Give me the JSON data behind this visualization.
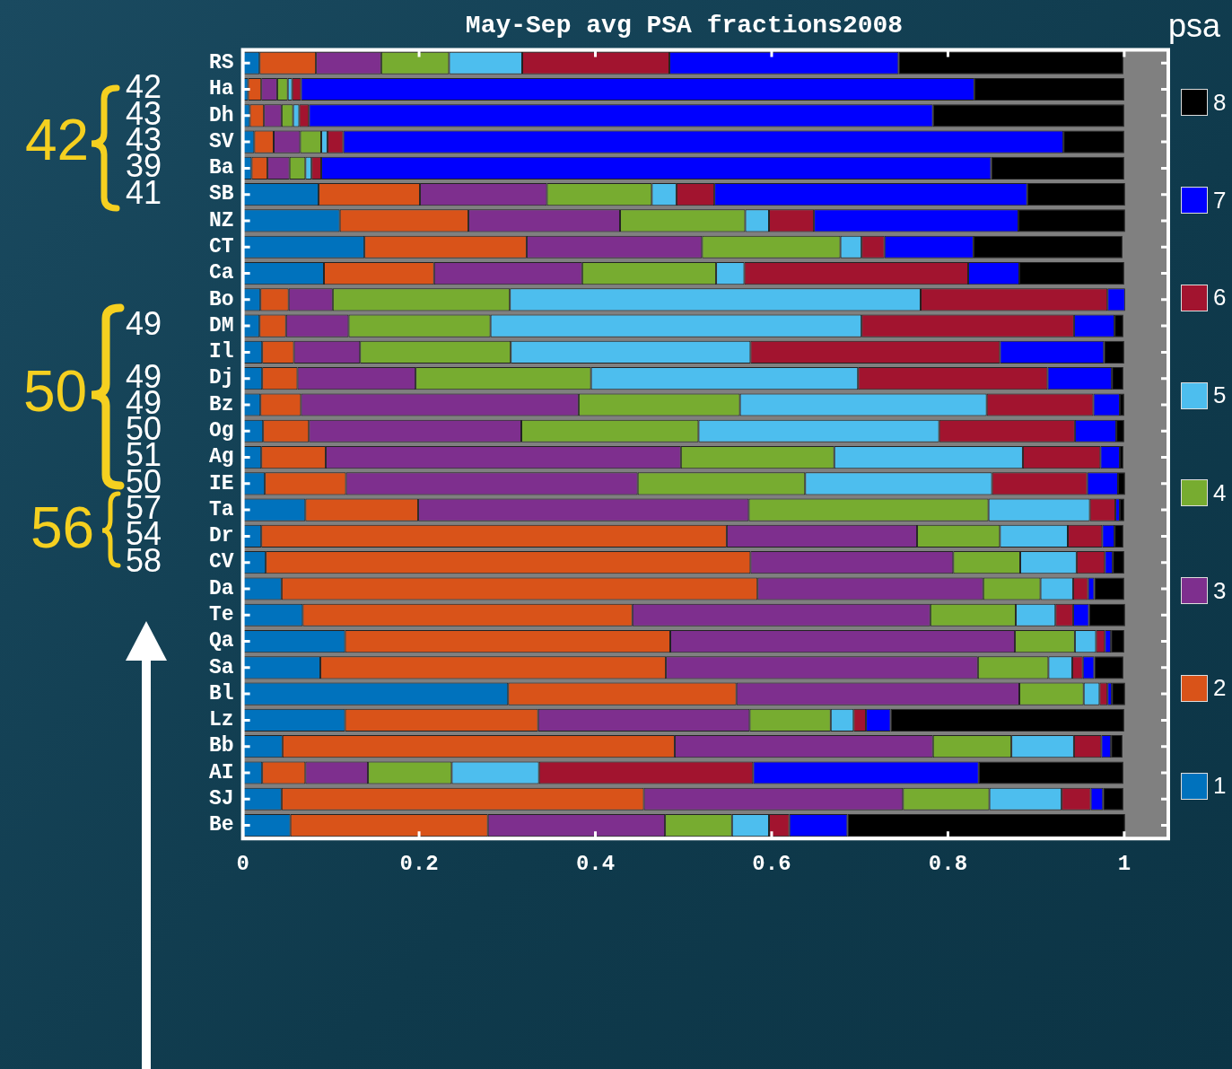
{
  "chart_data": {
    "type": "bar",
    "orientation": "horizontal",
    "stacked": true,
    "title": "May-Sep avg PSA fractions2008",
    "legend_title": "psa",
    "legend": "right",
    "grid": false,
    "categories": [
      "RS",
      "Ha",
      "Dh",
      "SV",
      "Ba",
      "SB",
      "NZ",
      "CT",
      "Ca",
      "Bo",
      "DM",
      "Il",
      "Dj",
      "Bz",
      "Og",
      "Ag",
      "IE",
      "Ta",
      "Dr",
      "CV",
      "Da",
      "Te",
      "Qa",
      "Sa",
      "Bl",
      "Lz",
      "Bb",
      "AI",
      "SJ",
      "Be"
    ],
    "xlim": [
      0,
      1.05
    ],
    "xticks": [
      0,
      0.2,
      0.4,
      0.6,
      0.8,
      1
    ],
    "series": [
      {
        "name": "1",
        "color": "#0072bd",
        "values": [
          0.019,
          0.006,
          0.008,
          0.013,
          0.01,
          0.086,
          0.11,
          0.138,
          0.092,
          0.02,
          0.019,
          0.022,
          0.022,
          0.02,
          0.023,
          0.021,
          0.025,
          0.071,
          0.021,
          0.026,
          0.044,
          0.068,
          0.116,
          0.088,
          0.301,
          0.116,
          0.045,
          0.022,
          0.044,
          0.054
        ]
      },
      {
        "name": "2",
        "color": "#d95319",
        "values": [
          0.064,
          0.015,
          0.016,
          0.022,
          0.018,
          0.115,
          0.146,
          0.184,
          0.125,
          0.032,
          0.03,
          0.036,
          0.04,
          0.046,
          0.052,
          0.073,
          0.092,
          0.128,
          0.528,
          0.55,
          0.54,
          0.374,
          0.369,
          0.392,
          0.259,
          0.219,
          0.445,
          0.049,
          0.411,
          0.224
        ]
      },
      {
        "name": "3",
        "color": "#7e2f8e",
        "values": [
          0.074,
          0.018,
          0.02,
          0.03,
          0.025,
          0.144,
          0.172,
          0.199,
          0.168,
          0.05,
          0.071,
          0.075,
          0.134,
          0.315,
          0.241,
          0.403,
          0.331,
          0.375,
          0.216,
          0.23,
          0.256,
          0.338,
          0.391,
          0.354,
          0.321,
          0.24,
          0.293,
          0.071,
          0.294,
          0.201
        ]
      },
      {
        "name": "4",
        "color": "#77ac30",
        "values": [
          0.077,
          0.012,
          0.013,
          0.024,
          0.018,
          0.119,
          0.142,
          0.157,
          0.152,
          0.201,
          0.161,
          0.171,
          0.199,
          0.183,
          0.201,
          0.174,
          0.19,
          0.272,
          0.094,
          0.076,
          0.065,
          0.097,
          0.068,
          0.08,
          0.073,
          0.092,
          0.089,
          0.095,
          0.098,
          0.076
        ]
      },
      {
        "name": "5",
        "color": "#4dbeee",
        "values": [
          0.083,
          0.005,
          0.007,
          0.007,
          0.007,
          0.028,
          0.027,
          0.024,
          0.032,
          0.466,
          0.421,
          0.272,
          0.303,
          0.28,
          0.273,
          0.214,
          0.212,
          0.115,
          0.077,
          0.064,
          0.037,
          0.045,
          0.024,
          0.027,
          0.018,
          0.026,
          0.071,
          0.099,
          0.082,
          0.042
        ]
      },
      {
        "name": "6",
        "color": "#a2142f",
        "values": [
          0.167,
          0.01,
          0.011,
          0.018,
          0.011,
          0.043,
          0.051,
          0.026,
          0.254,
          0.212,
          0.241,
          0.283,
          0.215,
          0.121,
          0.154,
          0.088,
          0.108,
          0.029,
          0.039,
          0.032,
          0.017,
          0.02,
          0.01,
          0.012,
          0.009,
          0.014,
          0.031,
          0.243,
          0.033,
          0.023
        ]
      },
      {
        "name": "7",
        "color": "#0000ff",
        "values": [
          0.26,
          0.764,
          0.708,
          0.817,
          0.76,
          0.355,
          0.232,
          0.101,
          0.058,
          0.02,
          0.046,
          0.118,
          0.073,
          0.03,
          0.047,
          0.022,
          0.035,
          0.005,
          0.014,
          0.009,
          0.007,
          0.018,
          0.007,
          0.013,
          0.005,
          0.028,
          0.011,
          0.256,
          0.014,
          0.066
        ]
      },
      {
        "name": "8",
        "color": "#000000",
        "values": [
          0.255,
          0.17,
          0.217,
          0.069,
          0.151,
          0.111,
          0.121,
          0.169,
          0.119,
          0,
          0.01,
          0.023,
          0.013,
          0.005,
          0.009,
          0.004,
          0.008,
          0.005,
          0.01,
          0.013,
          0.034,
          0.041,
          0.015,
          0.033,
          0.015,
          0.265,
          0.013,
          0.164,
          0.023,
          0.315
        ]
      }
    ],
    "annotations": [
      "42",
      "42",
      "43",
      "43",
      "39",
      "41",
      "50",
      "49",
      "49",
      "49",
      "50",
      "51",
      "50",
      "56",
      "57",
      "54",
      "58"
    ]
  }
}
